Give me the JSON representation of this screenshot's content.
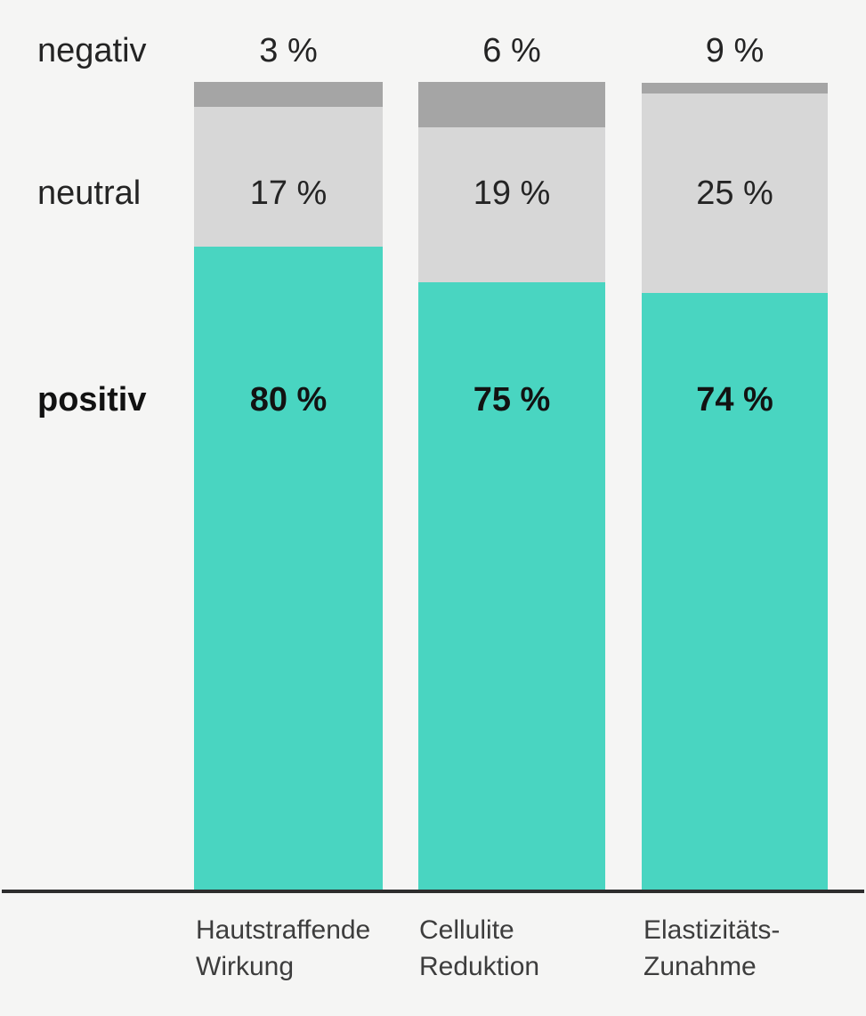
{
  "background": "#f5f5f4",
  "chart_data": {
    "type": "bar",
    "stacked": true,
    "orientation": "vertical",
    "title": "",
    "xlabel": "",
    "ylabel": "",
    "ylim": [
      0,
      100
    ],
    "grid": false,
    "legend_position": "left-rows",
    "unit": "%",
    "categories": [
      "Hautstraffende Wirkung",
      "Cellulite Reduktion",
      "Elastizitäts-Zunahme"
    ],
    "series": [
      {
        "name": "negativ",
        "color": "#a5a5a5",
        "values": [
          3,
          6,
          9
        ]
      },
      {
        "name": "neutral",
        "color": "#d7d7d7",
        "values": [
          17,
          19,
          25
        ]
      },
      {
        "name": "positiv",
        "color": "#49d5c1",
        "values": [
          80,
          75,
          74
        ]
      }
    ],
    "axis_line_color": "#2d2d2d"
  },
  "row_labels": {
    "negativ": "negativ",
    "neutral": "neutral",
    "positiv": "positiv"
  },
  "values_display": {
    "negativ": [
      "3 %",
      "6 %",
      "9 %"
    ],
    "neutral": [
      "17 %",
      "19 %",
      "25 %"
    ],
    "positiv": [
      "80 %",
      "75 %",
      "74 %"
    ]
  },
  "x_labels": [
    "Hautstraffende\nWirkung",
    "Cellulite\nReduktion",
    "Elastizitäts-\nZunahme"
  ]
}
